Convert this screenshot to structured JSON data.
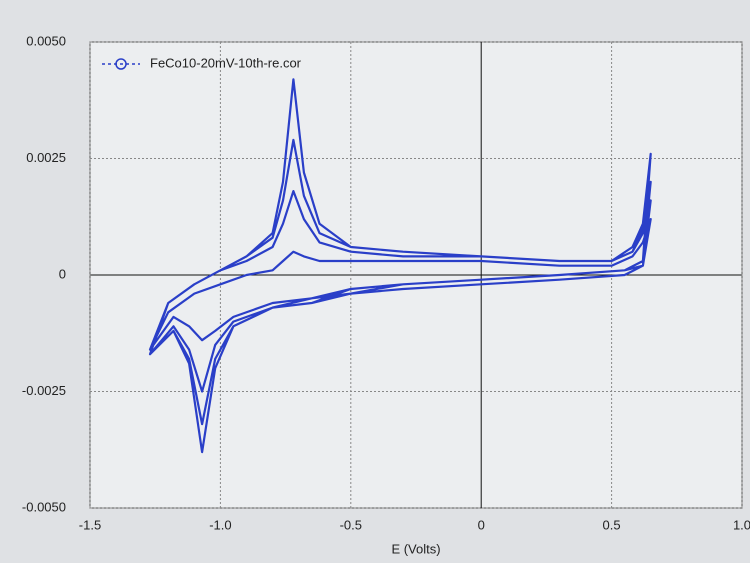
{
  "chart_data": {
    "type": "line",
    "xlabel": "E (Volts)",
    "xlim": [
      -1.5,
      1.0
    ],
    "xticks": [
      -1.5,
      {
        "value": -1.0,
        "label": "-1.0"
      },
      -0.5,
      0,
      0.5,
      {
        "value": 1.0,
        "label": "1.0"
      }
    ],
    "ylim": [
      -0.005,
      0.005
    ],
    "yticks": [
      {
        "value": -0.005,
        "label": "-0.0050"
      },
      -0.0025,
      0,
      0.0025,
      {
        "value": 0.005,
        "label": "0.0050"
      }
    ],
    "grid": true,
    "legend": "upper-left",
    "series": [
      {
        "name": "FeCo10-20mV-10th-re.cor",
        "color": "#2a3fc8",
        "x": [
          -1.27,
          -1.2,
          -1.1,
          -1.0,
          -0.9,
          -0.8,
          -0.76,
          -0.72,
          -0.68,
          -0.62,
          -0.5,
          -0.3,
          0,
          0.3,
          0.5,
          0.58,
          0.62,
          0.65,
          0.62,
          0.55,
          0.3,
          0,
          -0.3,
          -0.5,
          -0.65,
          -0.8,
          -0.95,
          -1.02,
          -1.07,
          -1.12,
          -1.18,
          -1.27,
          -1.27,
          -1.2,
          -1.1,
          -1.0,
          -0.9,
          -0.8,
          -0.76,
          -0.72,
          -0.68,
          -0.62,
          -0.5,
          -0.3,
          0,
          0.3,
          0.5,
          0.58,
          0.62,
          0.65,
          0.62,
          0.55,
          0.3,
          0,
          -0.3,
          -0.5,
          -0.65,
          -0.8,
          -0.95,
          -1.02,
          -1.07,
          -1.12,
          -1.18,
          -1.27,
          -1.27,
          -1.2,
          -1.1,
          -1.0,
          -0.9,
          -0.8,
          -0.76,
          -0.72,
          -0.68,
          -0.62,
          -0.5,
          -0.3,
          0,
          0.3,
          0.5,
          0.58,
          0.62,
          0.65,
          0.62,
          0.55,
          0.3,
          0,
          -0.3,
          -0.5,
          -0.65,
          -0.8,
          -0.95,
          -1.02,
          -1.07,
          -1.12,
          -1.18,
          -1.27,
          -1.27,
          -1.2,
          -1.1,
          -1.0,
          -0.9,
          -0.8,
          -0.76,
          -0.72,
          -0.68,
          -0.62,
          -0.5,
          -0.3,
          0,
          0.3,
          0.5,
          0.58,
          0.62,
          0.65,
          0.62,
          0.55,
          0.3,
          0,
          -0.3,
          -0.5,
          -0.65,
          -0.8,
          -0.95,
          -1.02,
          -1.07,
          -1.12,
          -1.18,
          -1.27
        ],
        "values": [
          -0.0016,
          -0.0008,
          -0.0004,
          -0.0002,
          0.0,
          0.0001,
          0.0003,
          0.0005,
          0.0004,
          0.0003,
          0.0003,
          0.0003,
          0.0003,
          0.0002,
          0.0002,
          0.0004,
          0.0007,
          0.0012,
          0.0002,
          0.0,
          -0.0001,
          -0.0002,
          -0.0003,
          -0.0004,
          -0.0005,
          -0.0006,
          -0.0009,
          -0.0012,
          -0.0014,
          -0.0011,
          -0.0009,
          -0.0016,
          -0.0016,
          -0.0006,
          -0.0002,
          0.0001,
          0.0003,
          0.0006,
          0.0011,
          0.0018,
          0.0012,
          0.0007,
          0.0005,
          0.0004,
          0.0004,
          0.0003,
          0.0003,
          0.0005,
          0.0009,
          0.0016,
          0.0002,
          0.0001,
          0.0,
          -0.0001,
          -0.0002,
          -0.0004,
          -0.0006,
          -0.0007,
          -0.001,
          -0.0015,
          -0.0025,
          -0.0016,
          -0.0011,
          -0.0017,
          -0.0017,
          -0.0006,
          -0.0002,
          0.0001,
          0.0004,
          0.0008,
          0.0016,
          0.0029,
          0.0017,
          0.0009,
          0.0006,
          0.0005,
          0.0004,
          0.0003,
          0.0003,
          0.0005,
          0.001,
          0.002,
          0.0003,
          0.0001,
          0.0,
          -0.0001,
          -0.0002,
          -0.0003,
          -0.0006,
          -0.0007,
          -0.0011,
          -0.0018,
          -0.0032,
          -0.0018,
          -0.0012,
          -0.0017,
          -0.0017,
          -0.0006,
          -0.0002,
          0.0001,
          0.0004,
          0.0009,
          0.002,
          0.0042,
          0.0022,
          0.0011,
          0.0006,
          0.0005,
          0.0004,
          0.0003,
          0.0003,
          0.0006,
          0.0011,
          0.0026,
          0.0003,
          0.0001,
          0.0,
          -0.0001,
          -0.0002,
          -0.0003,
          -0.0005,
          -0.0007,
          -0.0011,
          -0.002,
          -0.0038,
          -0.0019,
          -0.0012,
          -0.0017
        ]
      }
    ]
  }
}
